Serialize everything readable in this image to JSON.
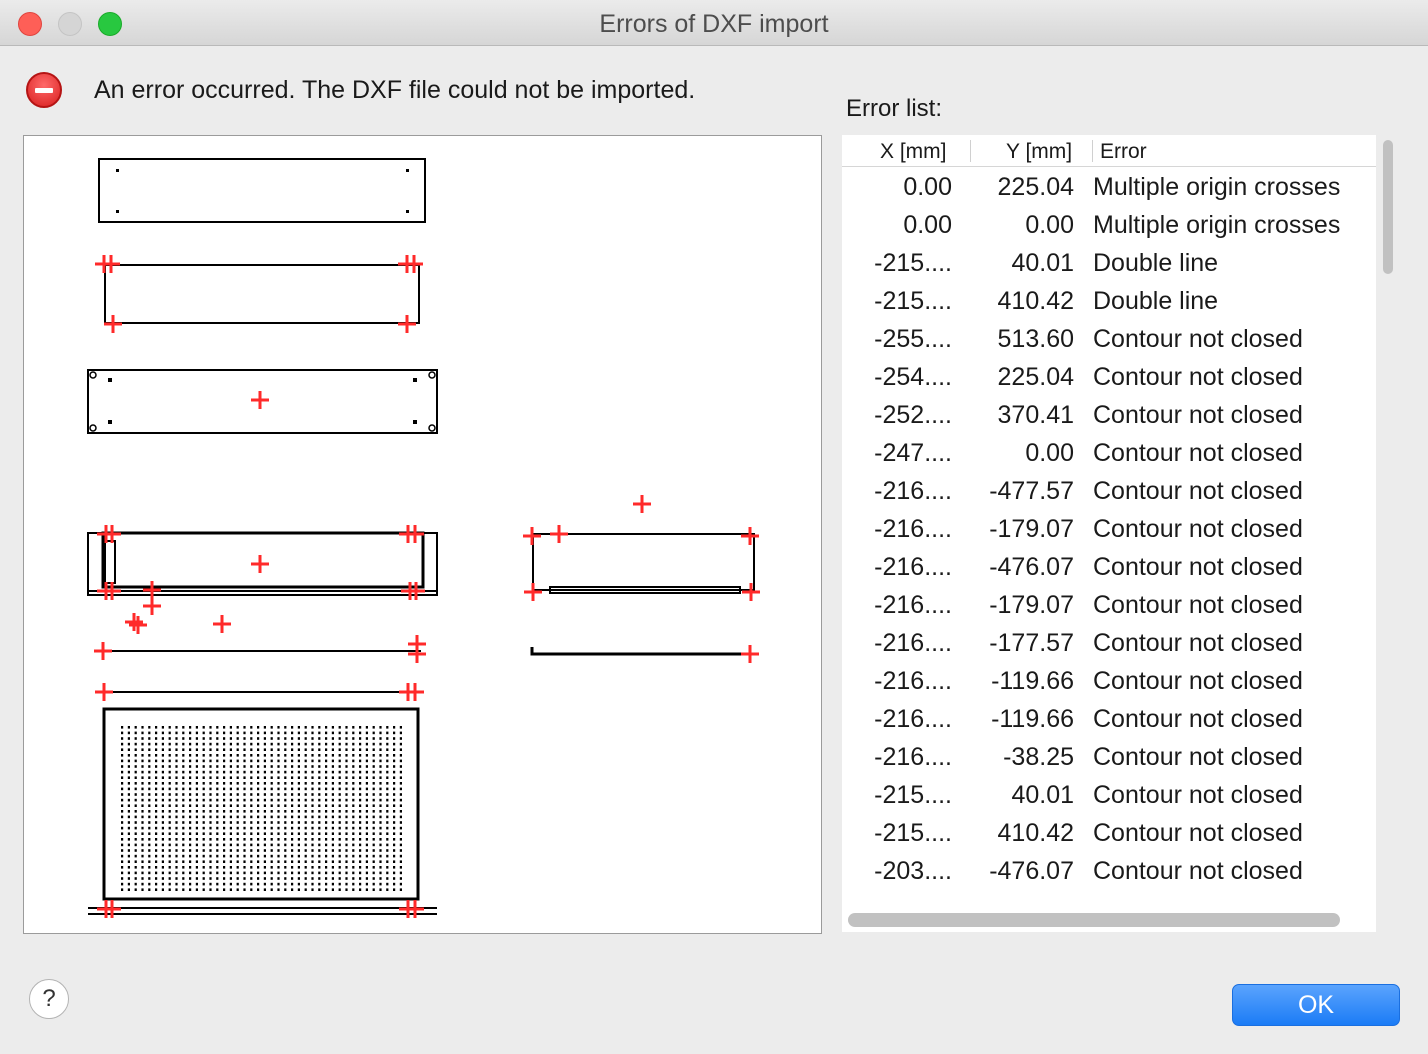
{
  "window": {
    "title": "Errors of DXF import"
  },
  "message": "An error occurred. The DXF file could not be imported.",
  "error_list": {
    "label": "Error list:",
    "columns": {
      "x": "X [mm]",
      "y": "Y [mm]",
      "error": "Error"
    },
    "rows": [
      {
        "x": "0.00",
        "y": "225.04",
        "error": "Multiple origin crosses"
      },
      {
        "x": "0.00",
        "y": "0.00",
        "error": "Multiple origin crosses"
      },
      {
        "x": "-215....",
        "y": "40.01",
        "error": "Double line"
      },
      {
        "x": "-215....",
        "y": "410.42",
        "error": "Double line"
      },
      {
        "x": "-255....",
        "y": "513.60",
        "error": "Contour not closed"
      },
      {
        "x": "-254....",
        "y": "225.04",
        "error": "Contour not closed"
      },
      {
        "x": "-252....",
        "y": "370.41",
        "error": "Contour not closed"
      },
      {
        "x": "-247....",
        "y": "0.00",
        "error": "Contour not closed"
      },
      {
        "x": "-216....",
        "y": "-477.57",
        "error": "Contour not closed"
      },
      {
        "x": "-216....",
        "y": "-179.07",
        "error": "Contour not closed"
      },
      {
        "x": "-216....",
        "y": "-476.07",
        "error": "Contour not closed"
      },
      {
        "x": "-216....",
        "y": "-179.07",
        "error": "Contour not closed"
      },
      {
        "x": "-216....",
        "y": "-177.57",
        "error": "Contour not closed"
      },
      {
        "x": "-216....",
        "y": "-119.66",
        "error": "Contour not closed"
      },
      {
        "x": "-216....",
        "y": "-119.66",
        "error": "Contour not closed"
      },
      {
        "x": "-216....",
        "y": "-38.25",
        "error": "Contour not closed"
      },
      {
        "x": "-215....",
        "y": "40.01",
        "error": "Contour not closed"
      },
      {
        "x": "-215....",
        "y": "410.42",
        "error": "Contour not closed"
      },
      {
        "x": "-203....",
        "y": "-476.07",
        "error": "Contour not closed"
      }
    ]
  },
  "buttons": {
    "help": "?",
    "ok": "OK"
  },
  "colors": {
    "marker": "#ff2a2a",
    "accent": "#1b7cf6",
    "error_icon": "#d81e1e"
  },
  "icons": {
    "status": "error-stop-icon",
    "help": "question-mark-icon"
  }
}
